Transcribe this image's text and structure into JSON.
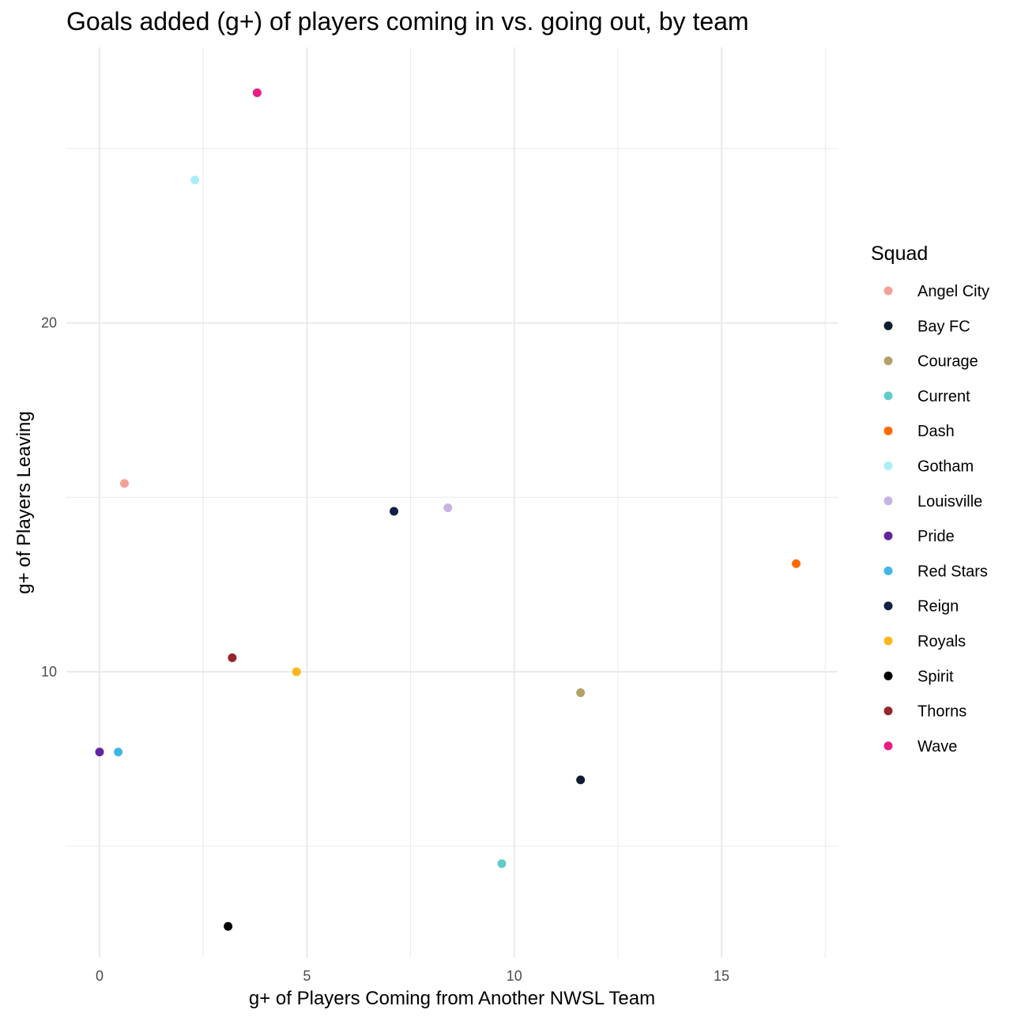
{
  "chart_data": {
    "type": "scatter",
    "title": "Goals added (g+) of players coming in vs. going out, by team",
    "xlabel": "g+ of Players Coming from Another NWSL Team",
    "ylabel": "g+ of Players Leaving",
    "xlim": [
      -0.8,
      17.8
    ],
    "ylim": [
      1.8,
      27.9
    ],
    "x_ticks": [
      0,
      5,
      10,
      15
    ],
    "y_ticks": [
      10,
      20
    ],
    "grid": true,
    "legend": {
      "title": "Squad",
      "placement": "right"
    },
    "points": [
      {
        "team": "Angel City",
        "x": 0.6,
        "y": 15.4,
        "color": "#F4A09A"
      },
      {
        "team": "Bay FC",
        "x": 11.6,
        "y": 6.9,
        "color": "#0E1C2E"
      },
      {
        "team": "Courage",
        "x": 11.6,
        "y": 9.4,
        "color": "#B2A16A"
      },
      {
        "team": "Current",
        "x": 9.7,
        "y": 4.5,
        "color": "#62CBC9"
      },
      {
        "team": "Dash",
        "x": 16.8,
        "y": 13.1,
        "color": "#FF6B00"
      },
      {
        "team": "Gotham",
        "x": 2.3,
        "y": 24.1,
        "color": "#A9EEF5"
      },
      {
        "team": "Louisville",
        "x": 8.4,
        "y": 14.7,
        "color": "#C5B4E3"
      },
      {
        "team": "Pride",
        "x": 0.0,
        "y": 7.7,
        "color": "#61259E"
      },
      {
        "team": "Red Stars",
        "x": 0.45,
        "y": 7.7,
        "color": "#41B6E6"
      },
      {
        "team": "Reign",
        "x": 7.1,
        "y": 14.6,
        "color": "#101F45"
      },
      {
        "team": "Royals",
        "x": 4.75,
        "y": 10.0,
        "color": "#FDB71A"
      },
      {
        "team": "Spirit",
        "x": 3.1,
        "y": 2.7,
        "color": "#000000"
      },
      {
        "team": "Thorns",
        "x": 3.2,
        "y": 10.4,
        "color": "#97262C"
      },
      {
        "team": "Wave",
        "x": 3.8,
        "y": 26.6,
        "color": "#EB1C84"
      }
    ]
  }
}
